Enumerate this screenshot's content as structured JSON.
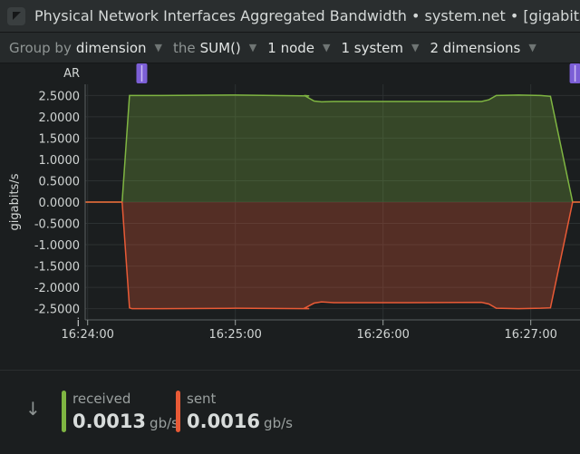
{
  "header": {
    "title": "Physical Network Interfaces Aggregated Bandwidth • system.net • [gigabits/s]",
    "icon": "netdata-logo-icon"
  },
  "controls": {
    "group_by_label": "Group by",
    "group_by_value": "dimension",
    "aggregation_label": "the",
    "aggregation_value": "SUM()",
    "nodes": "1 node",
    "systems": "1 system",
    "dimensions": "2 dimensions"
  },
  "chart_data": {
    "type": "area",
    "ylabel": "gigabits/s",
    "y_ticks": [
      "2.5000",
      "2.0000",
      "1.5000",
      "1.0000",
      "0.5000",
      "0.0000",
      "-0.5000",
      "-1.0000",
      "-1.5000",
      "-2.0000",
      "-2.5000"
    ],
    "y_tick_values": [
      2.5,
      2.0,
      1.5,
      1.0,
      0.5,
      0.0,
      -0.5,
      -1.0,
      -1.5,
      -2.0,
      -2.5
    ],
    "ylim": [
      -2.55,
      2.55
    ],
    "x_ticks": [
      "16:24:00",
      "16:25:00",
      "16:26:00",
      "16:27:00"
    ],
    "x_tick_values": [
      0,
      60,
      120,
      180
    ],
    "xlim": [
      -1,
      200
    ],
    "grid": true,
    "top_label": "AR",
    "bottom_label": "i",
    "annotation_markers": [
      {
        "x": 22,
        "color": "#7c5fd6"
      },
      {
        "x": 198,
        "color": "#7c5fd6"
      }
    ],
    "series": [
      {
        "name": "received",
        "color": "#7fb542",
        "x": [
          -1,
          14,
          17,
          18,
          30,
          60,
          90,
          88,
          92,
          95,
          100,
          130,
          160,
          163,
          166,
          175,
          184,
          188,
          197,
          200
        ],
        "values": [
          0,
          0,
          2.5,
          2.5,
          2.5,
          2.51,
          2.49,
          2.5,
          2.37,
          2.35,
          2.36,
          2.36,
          2.36,
          2.4,
          2.5,
          2.51,
          2.5,
          2.48,
          0,
          0
        ]
      },
      {
        "name": "sent",
        "color": "#e85a36",
        "x": [
          -1,
          14,
          17,
          18,
          30,
          60,
          90,
          88,
          92,
          95,
          100,
          130,
          160,
          163,
          166,
          175,
          184,
          188,
          197,
          200
        ],
        "values": [
          0,
          0,
          -2.48,
          -2.5,
          -2.5,
          -2.49,
          -2.5,
          -2.49,
          -2.37,
          -2.34,
          -2.36,
          -2.36,
          -2.35,
          -2.39,
          -2.49,
          -2.5,
          -2.49,
          -2.48,
          0,
          0
        ]
      }
    ]
  },
  "legend": {
    "arrow_icon": "arrow-down-icon",
    "items": [
      {
        "name": "received",
        "value": "0.0013",
        "unit": "gb/s",
        "color": "#7fb542"
      },
      {
        "name": "sent",
        "value": "0.0016",
        "unit": "gb/s",
        "color": "#e85a36"
      }
    ]
  }
}
